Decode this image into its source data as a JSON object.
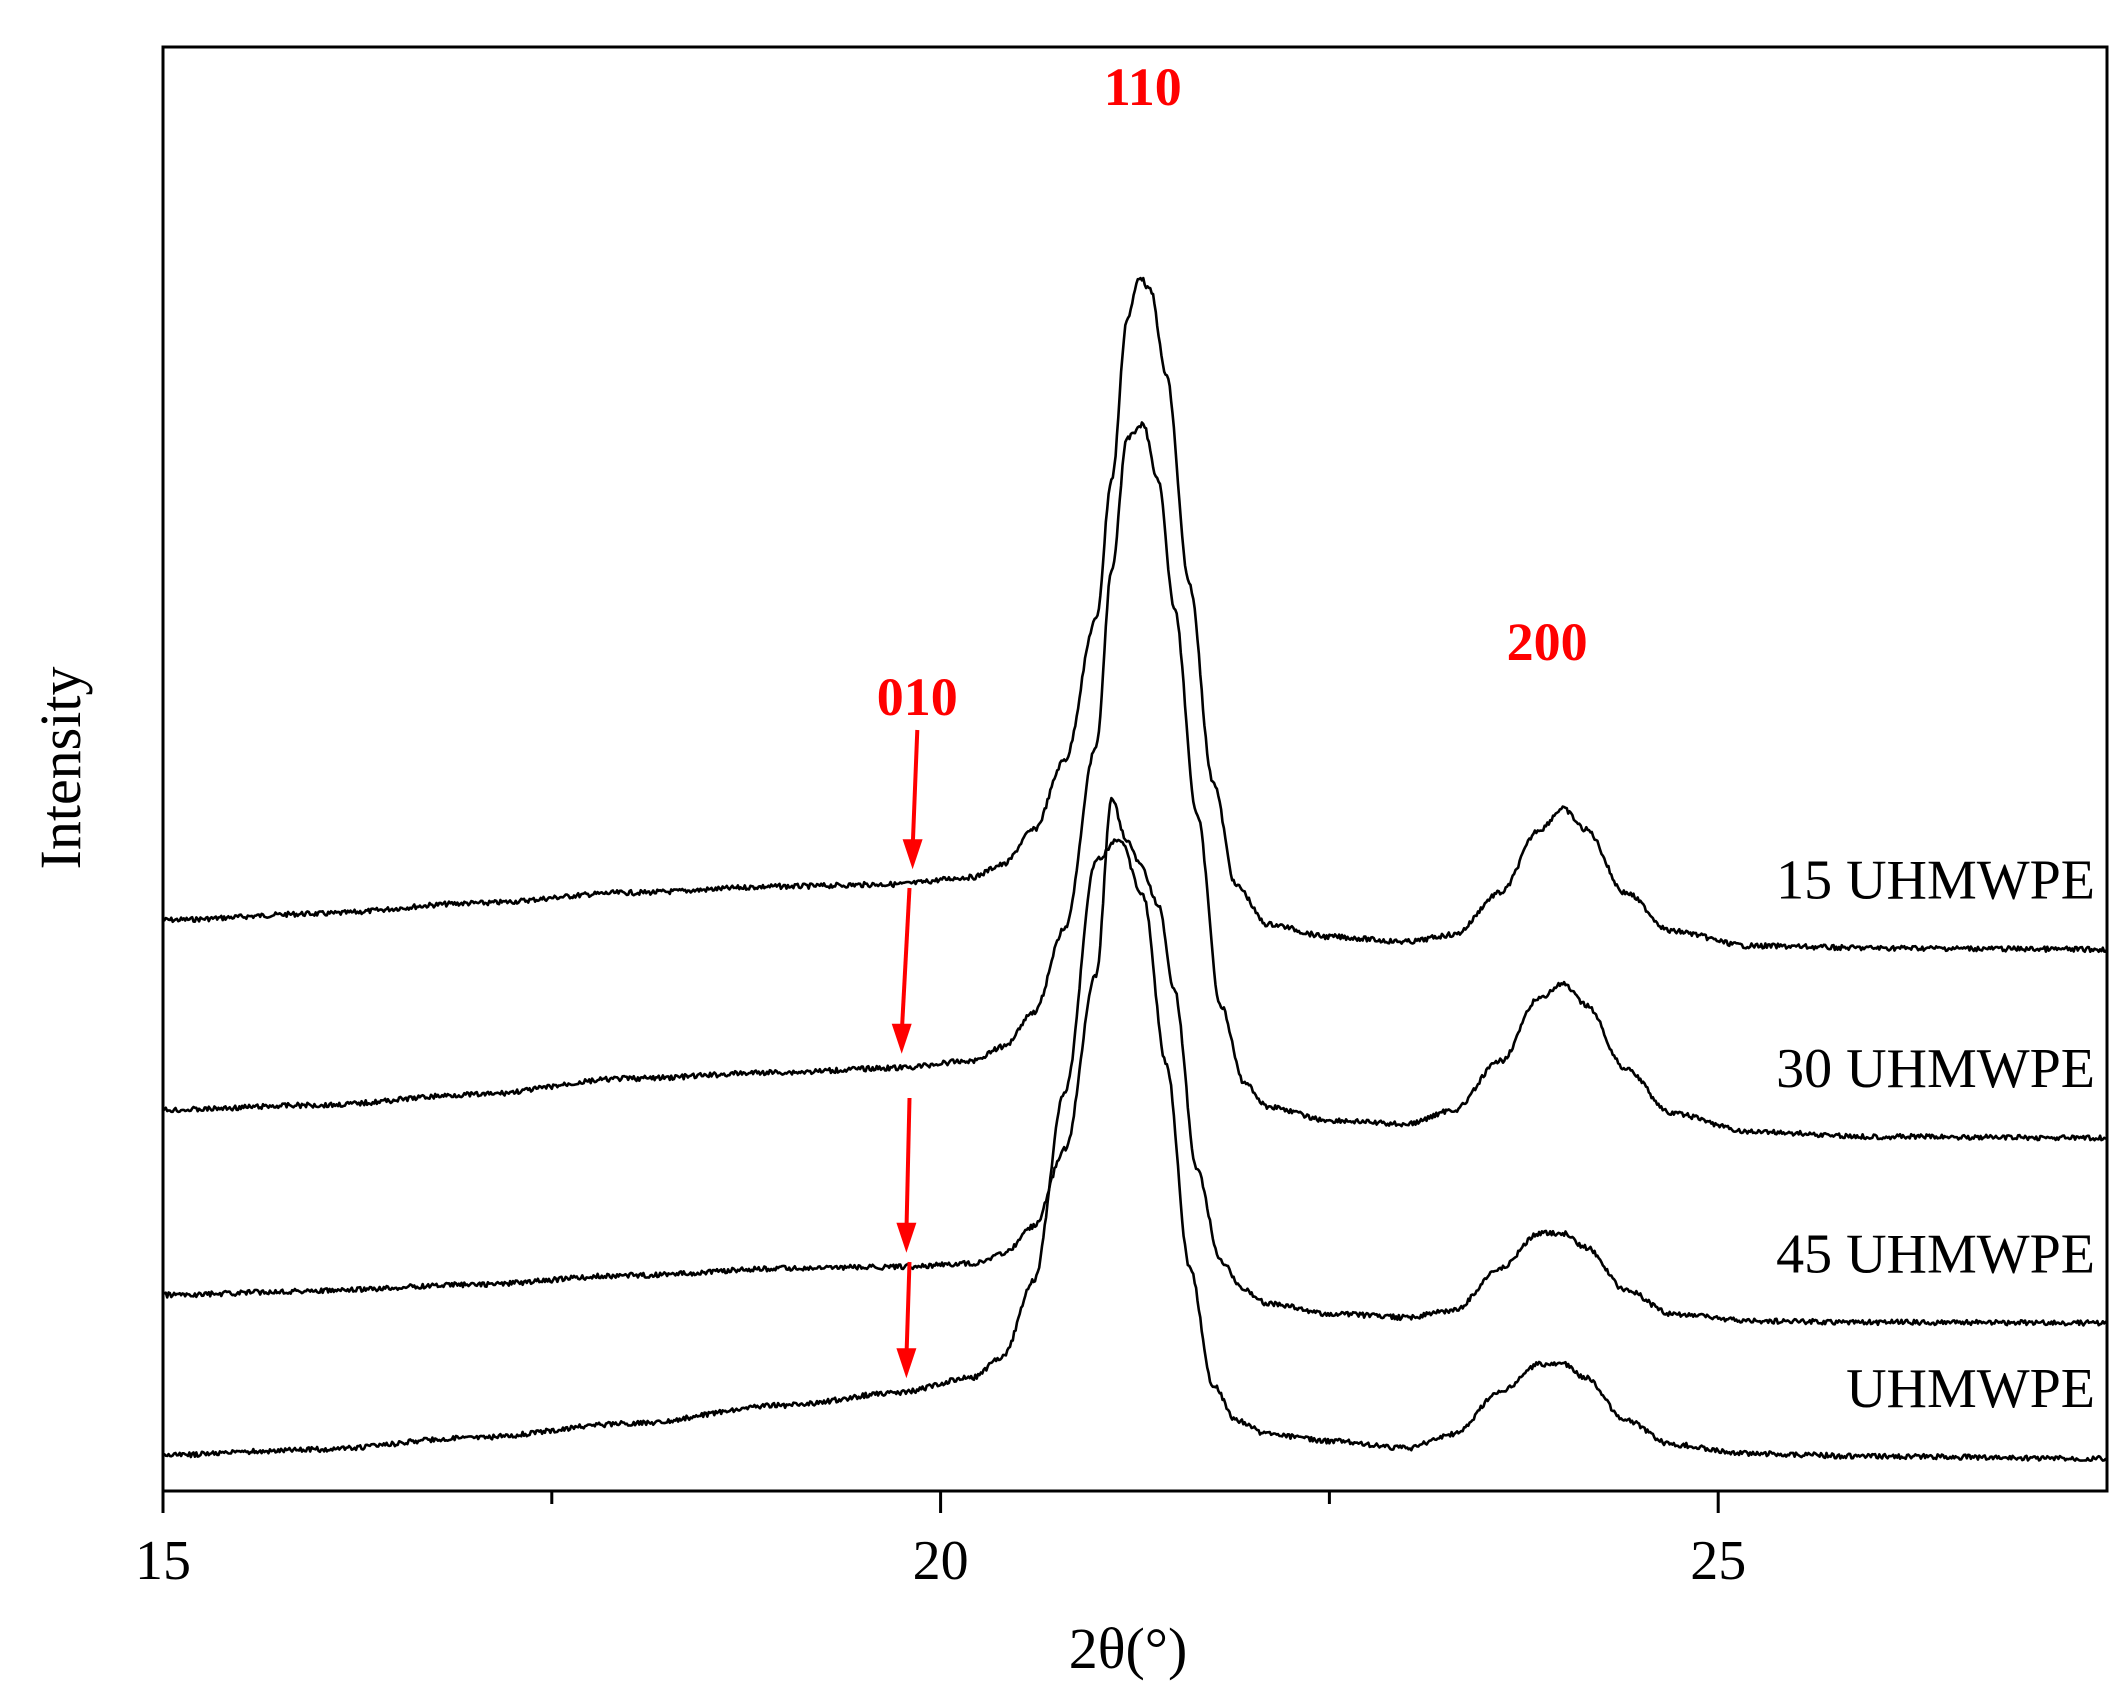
{
  "chart_data": {
    "type": "line",
    "title": "",
    "xlabel": "2θ(°)",
    "ylabel": "Intensity",
    "xlim": [
      15,
      27.5
    ],
    "x_ticks": [
      15,
      20,
      25
    ],
    "x_minor_ticks": [
      17.5,
      22.5
    ],
    "y_ticks": [],
    "grid": false,
    "legend": "none",
    "line_color": "#000000",
    "annotation_color": "#ff0000",
    "series": [
      {
        "name": "15 UHMWPE",
        "points": [
          [
            15.0,
            0.379
          ],
          [
            16.0,
            0.37
          ],
          [
            17.0,
            0.355
          ],
          [
            18.0,
            0.34
          ],
          [
            19.0,
            0.331
          ],
          [
            19.7,
            0.328
          ],
          [
            20.2,
            0.318
          ],
          [
            20.4,
            0.3
          ],
          [
            20.6,
            0.25
          ],
          [
            20.8,
            0.15
          ],
          [
            21.0,
            -0.05
          ],
          [
            21.1,
            -0.25
          ],
          [
            21.2,
            -0.48
          ],
          [
            21.28,
            -0.54
          ],
          [
            21.35,
            -0.52
          ],
          [
            21.45,
            -0.4
          ],
          [
            21.6,
            -0.1
          ],
          [
            21.75,
            0.18
          ],
          [
            21.9,
            0.33
          ],
          [
            22.1,
            0.385
          ],
          [
            22.5,
            0.403
          ],
          [
            23.0,
            0.41
          ],
          [
            23.3,
            0.4
          ],
          [
            23.6,
            0.34
          ],
          [
            23.85,
            0.25
          ],
          [
            24.0,
            0.22
          ],
          [
            24.15,
            0.25
          ],
          [
            24.4,
            0.34
          ],
          [
            24.7,
            0.395
          ],
          [
            25.2,
            0.416
          ],
          [
            26.0,
            0.419
          ],
          [
            27.5,
            0.421
          ]
        ],
        "label_position": "right"
      },
      {
        "name": "30 UHMWPE",
        "points": [
          [
            15.0,
            0.52
          ],
          [
            16.0,
            0.513
          ],
          [
            17.0,
            0.498
          ],
          [
            18.0,
            0.475
          ],
          [
            19.0,
            0.466
          ],
          [
            19.7,
            0.46
          ],
          [
            20.2,
            0.45
          ],
          [
            20.4,
            0.43
          ],
          [
            20.6,
            0.38
          ],
          [
            20.8,
            0.26
          ],
          [
            21.0,
            0.0
          ],
          [
            21.1,
            -0.25
          ],
          [
            21.2,
            -0.44
          ],
          [
            21.3,
            -0.46
          ],
          [
            21.4,
            -0.38
          ],
          [
            21.5,
            -0.2
          ],
          [
            21.65,
            0.1
          ],
          [
            21.8,
            0.37
          ],
          [
            21.95,
            0.48
          ],
          [
            22.1,
            0.515
          ],
          [
            22.5,
            0.535
          ],
          [
            23.0,
            0.54
          ],
          [
            23.3,
            0.52
          ],
          [
            23.6,
            0.45
          ],
          [
            23.85,
            0.36
          ],
          [
            24.0,
            0.34
          ],
          [
            24.15,
            0.37
          ],
          [
            24.4,
            0.46
          ],
          [
            24.7,
            0.525
          ],
          [
            25.2,
            0.551
          ],
          [
            26.0,
            0.558
          ],
          [
            27.5,
            0.56
          ]
        ],
        "label_position": "right"
      },
      {
        "name": "45 UHMWPE",
        "points": [
          [
            15.0,
            0.658
          ],
          [
            16.0,
            0.652
          ],
          [
            17.0,
            0.643
          ],
          [
            18.0,
            0.63
          ],
          [
            19.0,
            0.62
          ],
          [
            19.7,
            0.618
          ],
          [
            20.2,
            0.613
          ],
          [
            20.4,
            0.6
          ],
          [
            20.6,
            0.56
          ],
          [
            20.8,
            0.45
          ],
          [
            21.0,
            0.2
          ],
          [
            21.1,
            -0.05
          ],
          [
            21.2,
            0.01
          ],
          [
            21.28,
            0.04
          ],
          [
            21.4,
            0.1
          ],
          [
            21.5,
            0.22
          ],
          [
            21.65,
            0.48
          ],
          [
            21.8,
            0.61
          ],
          [
            21.95,
            0.65
          ],
          [
            22.1,
            0.67
          ],
          [
            22.5,
            0.685
          ],
          [
            23.0,
            0.69
          ],
          [
            23.3,
            0.68
          ],
          [
            23.6,
            0.62
          ],
          [
            23.85,
            0.57
          ],
          [
            24.0,
            0.57
          ],
          [
            24.15,
            0.59
          ],
          [
            24.4,
            0.65
          ],
          [
            24.7,
            0.685
          ],
          [
            25.2,
            0.695
          ],
          [
            26.0,
            0.697
          ],
          [
            27.5,
            0.698
          ]
        ],
        "label_position": "right"
      },
      {
        "name": "UHMWPE",
        "points": [
          [
            15.0,
            0.8
          ],
          [
            16.0,
            0.792
          ],
          [
            17.0,
            0.775
          ],
          [
            18.0,
            0.755
          ],
          [
            19.0,
            0.729
          ],
          [
            19.7,
            0.712
          ],
          [
            20.2,
            0.69
          ],
          [
            20.4,
            0.66
          ],
          [
            20.6,
            0.55
          ],
          [
            20.8,
            0.28
          ],
          [
            21.0,
            -0.05
          ],
          [
            21.15,
            -0.08
          ],
          [
            21.3,
            0.0
          ],
          [
            21.45,
            0.24
          ],
          [
            21.6,
            0.53
          ],
          [
            21.75,
            0.7
          ],
          [
            21.9,
            0.75
          ],
          [
            22.1,
            0.77
          ],
          [
            22.5,
            0.78
          ],
          [
            23.0,
            0.79
          ],
          [
            23.3,
            0.77
          ],
          [
            23.6,
            0.71
          ],
          [
            23.85,
            0.67
          ],
          [
            24.0,
            0.67
          ],
          [
            24.15,
            0.69
          ],
          [
            24.4,
            0.75
          ],
          [
            24.7,
            0.785
          ],
          [
            25.2,
            0.798
          ],
          [
            26.0,
            0.802
          ],
          [
            27.5,
            0.805
          ]
        ],
        "label_position": "right"
      }
    ],
    "annotations": [
      {
        "text": "110",
        "x": 21.3,
        "series": null
      },
      {
        "text": "200",
        "x": 23.9,
        "series": null
      },
      {
        "text": "010",
        "x": 19.85,
        "series": null
      }
    ],
    "arrows": [
      {
        "x_from": 19.85,
        "x_to": 19.82,
        "target_series": "15 UHMWPE"
      },
      {
        "x_from": 19.8,
        "x_to": 19.75,
        "target_series": "30 UHMWPE"
      },
      {
        "x_from": 19.8,
        "x_to": 19.78,
        "target_series": "45 UHMWPE"
      },
      {
        "x_from": 19.8,
        "x_to": 19.78,
        "target_series": "UHMWPE"
      }
    ]
  }
}
